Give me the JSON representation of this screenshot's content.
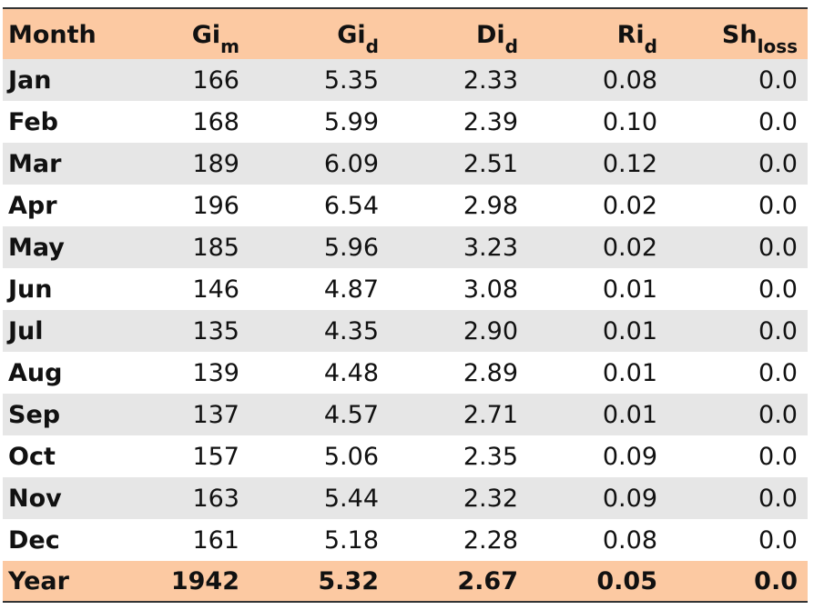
{
  "table": {
    "header": [
      {
        "text": "Month"
      },
      {
        "text": "Gi",
        "sub": "m"
      },
      {
        "text": "Gi",
        "sub": "d"
      },
      {
        "text": "Di",
        "sub": "d"
      },
      {
        "text": "Ri",
        "sub": "d"
      },
      {
        "text": "Sh",
        "sub": "loss"
      }
    ],
    "rows": [
      [
        "Jan",
        "166",
        "5.35",
        "2.33",
        "0.08",
        "0.0"
      ],
      [
        "Feb",
        "168",
        "5.99",
        "2.39",
        "0.10",
        "0.0"
      ],
      [
        "Mar",
        "189",
        "6.09",
        "2.51",
        "0.12",
        "0.0"
      ],
      [
        "Apr",
        "196",
        "6.54",
        "2.98",
        "0.02",
        "0.0"
      ],
      [
        "May",
        "185",
        "5.96",
        "3.23",
        "0.02",
        "0.0"
      ],
      [
        "Jun",
        "146",
        "4.87",
        "3.08",
        "0.01",
        "0.0"
      ],
      [
        "Jul",
        "135",
        "4.35",
        "2.90",
        "0.01",
        "0.0"
      ],
      [
        "Aug",
        "139",
        "4.48",
        "2.89",
        "0.01",
        "0.0"
      ],
      [
        "Sep",
        "137",
        "4.57",
        "2.71",
        "0.01",
        "0.0"
      ],
      [
        "Oct",
        "157",
        "5.06",
        "2.35",
        "0.09",
        "0.0"
      ],
      [
        "Nov",
        "163",
        "5.44",
        "2.32",
        "0.09",
        "0.0"
      ],
      [
        "Dec",
        "161",
        "5.18",
        "2.28",
        "0.08",
        "0.0"
      ]
    ],
    "total": [
      "Year",
      "1942",
      "5.32",
      "2.67",
      "0.05",
      "0.0"
    ]
  }
}
